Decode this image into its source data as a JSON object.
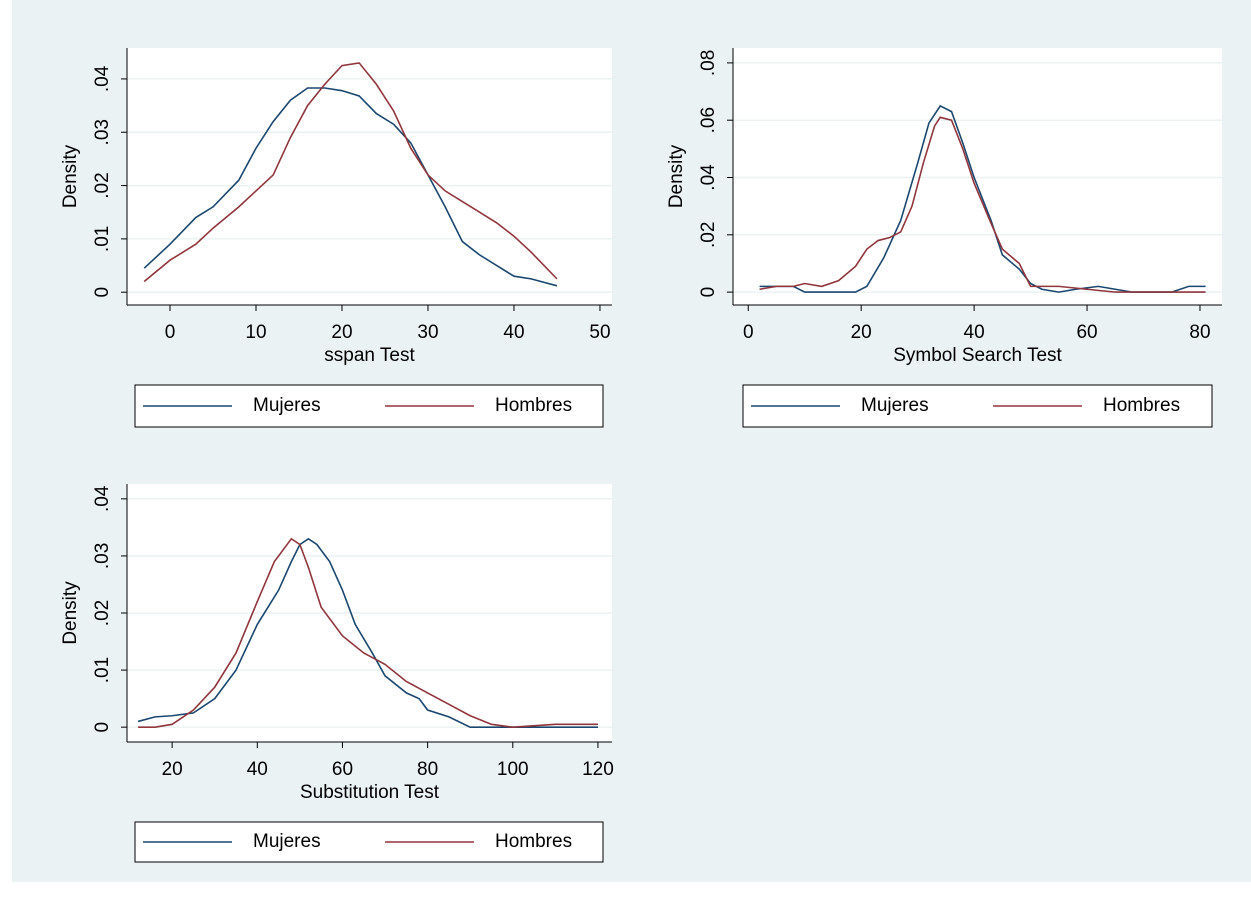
{
  "chart_data": [
    {
      "type": "line",
      "xlabel": "sspan Test",
      "ylabel": "Density",
      "xlim": [
        -5,
        51.4
      ],
      "ylim": [
        -0.0024,
        0.0458
      ],
      "xticks": [
        0,
        10,
        20,
        30,
        40,
        50
      ],
      "yticks": [
        0,
        {
          "value": 0.01,
          "label": ".01"
        },
        {
          "value": 0.02,
          "label": ".02"
        },
        {
          "value": 0.03,
          "label": ".03"
        },
        {
          "value": 0.04,
          "label": ".04"
        }
      ],
      "grid": true,
      "series": [
        {
          "name": "Mujeres",
          "color": "#1a476f",
          "x": [
            -3,
            0,
            3,
            5,
            8,
            10,
            12,
            14,
            16,
            18,
            20,
            22,
            24,
            26,
            28,
            30,
            32,
            34,
            36,
            38,
            40,
            42,
            45
          ],
          "values": [
            0.0045,
            0.009,
            0.014,
            0.016,
            0.021,
            0.027,
            0.032,
            0.036,
            0.0383,
            0.0383,
            0.0378,
            0.0368,
            0.0335,
            0.0315,
            0.028,
            0.022,
            0.016,
            0.0095,
            0.007,
            0.005,
            0.003,
            0.0025,
            0.0012
          ]
        },
        {
          "name": "Hombres",
          "color": "#90353b",
          "x": [
            -3,
            0,
            3,
            5,
            8,
            10,
            12,
            14,
            16,
            18,
            20,
            22,
            24,
            26,
            28,
            30,
            32,
            34,
            36,
            38,
            40,
            42,
            45
          ],
          "values": [
            0.002,
            0.006,
            0.009,
            0.012,
            0.016,
            0.019,
            0.022,
            0.029,
            0.035,
            0.039,
            0.0425,
            0.043,
            0.039,
            0.034,
            0.027,
            0.022,
            0.019,
            0.017,
            0.015,
            0.013,
            0.0105,
            0.0075,
            0.0025
          ]
        }
      ]
    },
    {
      "type": "line",
      "xlabel": "Symbol Search Test",
      "ylabel": "Density",
      "xlim": [
        -2.7,
        83.9
      ],
      "ylim": [
        -0.0045,
        0.0852
      ],
      "xticks": [
        0,
        20,
        40,
        60,
        80
      ],
      "yticks": [
        0,
        {
          "value": 0.02,
          "label": ".02"
        },
        {
          "value": 0.04,
          "label": ".04"
        },
        {
          "value": 0.06,
          "label": ".06"
        },
        {
          "value": 0.08,
          "label": ".08"
        }
      ],
      "grid": true,
      "series": [
        {
          "name": "Mujeres",
          "color": "#1a476f",
          "x": [
            2,
            5,
            8,
            10,
            15,
            19,
            21,
            24,
            27,
            30,
            32,
            34,
            36,
            38,
            40,
            43,
            45,
            48,
            50,
            52,
            55,
            58,
            62,
            65,
            68,
            72,
            75,
            78,
            81
          ],
          "values": [
            0.002,
            0.002,
            0.002,
            0,
            0,
            0,
            0.002,
            0.012,
            0.025,
            0.045,
            0.059,
            0.065,
            0.063,
            0.052,
            0.04,
            0.025,
            0.013,
            0.008,
            0.003,
            0.001,
            0,
            0.001,
            0.002,
            0.001,
            0,
            0,
            0,
            0.002,
            0.002
          ]
        },
        {
          "name": "Hombres",
          "color": "#90353b",
          "x": [
            2,
            5,
            8,
            10,
            13,
            16,
            19,
            21,
            23,
            25,
            27,
            29,
            31,
            33,
            34,
            36,
            38,
            40,
            43,
            45,
            48,
            50,
            55,
            60,
            65,
            72,
            81
          ],
          "values": [
            0.001,
            0.002,
            0.002,
            0.003,
            0.002,
            0.004,
            0.009,
            0.015,
            0.018,
            0.019,
            0.021,
            0.03,
            0.045,
            0.058,
            0.061,
            0.06,
            0.05,
            0.038,
            0.024,
            0.015,
            0.01,
            0.002,
            0.002,
            0.001,
            0,
            0,
            0
          ]
        }
      ]
    },
    {
      "type": "line",
      "xlabel": "Substitution Test",
      "ylabel": "Density",
      "xlim": [
        9.4,
        123.3
      ],
      "ylim": [
        -0.0026,
        0.0426
      ],
      "xticks": [
        20,
        40,
        60,
        80,
        100,
        120
      ],
      "yticks": [
        0,
        {
          "value": 0.01,
          "label": ".01"
        },
        {
          "value": 0.02,
          "label": ".02"
        },
        {
          "value": 0.03,
          "label": ".03"
        },
        {
          "value": 0.04,
          "label": ".04"
        }
      ],
      "grid": true,
      "series": [
        {
          "name": "Mujeres",
          "color": "#1a476f",
          "x": [
            12,
            16,
            20,
            25,
            30,
            35,
            40,
            45,
            48,
            50,
            52,
            54,
            57,
            60,
            63,
            67,
            70,
            75,
            78,
            80,
            85,
            90,
            100,
            110,
            120
          ],
          "values": [
            0.001,
            0.0018,
            0.002,
            0.0025,
            0.005,
            0.01,
            0.018,
            0.024,
            0.029,
            0.032,
            0.033,
            0.032,
            0.029,
            0.024,
            0.018,
            0.013,
            0.009,
            0.006,
            0.005,
            0.003,
            0.0018,
            0,
            0,
            0,
            0
          ]
        },
        {
          "name": "Hombres",
          "color": "#90353b",
          "x": [
            12,
            16,
            20,
            25,
            30,
            35,
            40,
            44,
            48,
            50,
            52,
            55,
            60,
            65,
            70,
            75,
            80,
            85,
            90,
            95,
            100,
            110,
            120
          ],
          "values": [
            0,
            0,
            0.0005,
            0.003,
            0.007,
            0.013,
            0.022,
            0.029,
            0.033,
            0.032,
            0.028,
            0.021,
            0.016,
            0.013,
            0.011,
            0.008,
            0.006,
            0.004,
            0.002,
            0.0005,
            0,
            0.0005,
            0.0005
          ]
        }
      ]
    }
  ]
}
